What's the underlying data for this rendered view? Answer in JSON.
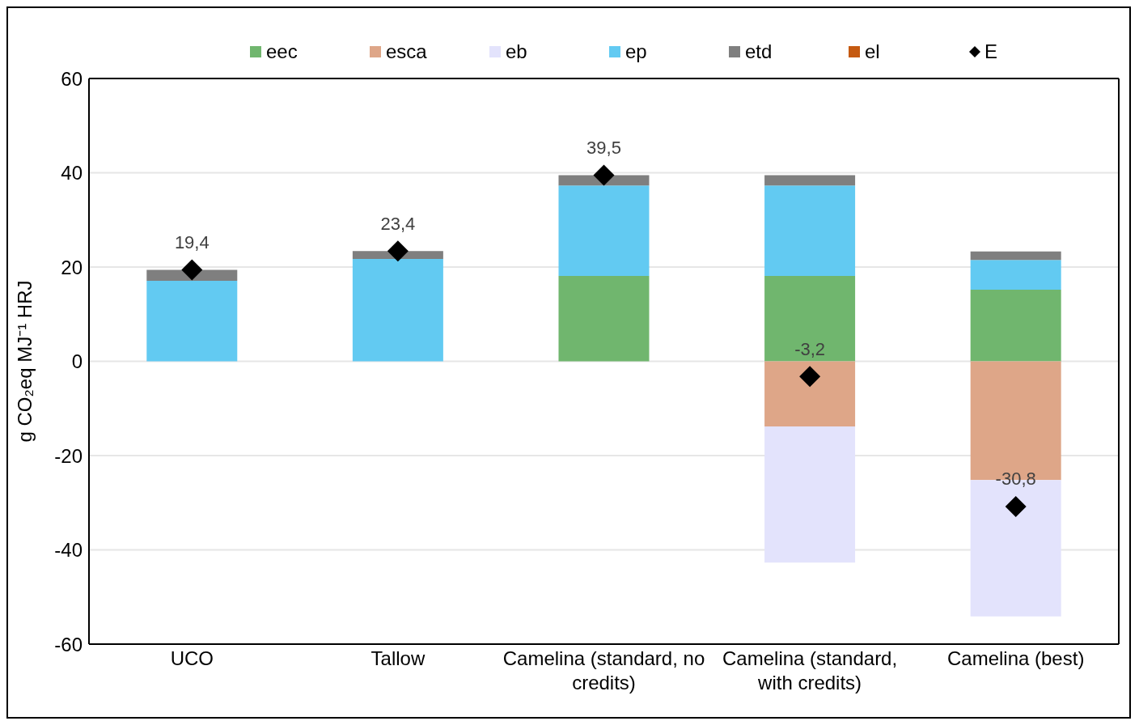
{
  "chart_data": {
    "type": "bar",
    "stacked": true,
    "ylabel": "g CO₂eq MJ⁻¹ HRJ",
    "categories": [
      "UCO",
      "Tallow",
      "Camelina (standard, no credits)",
      "Camelina (standard, with credits)",
      "Camelina (best)"
    ],
    "series": [
      {
        "name": "eec",
        "color": "#70b66e",
        "values": [
          null,
          null,
          18.1,
          18.1,
          15.2
        ]
      },
      {
        "name": "esca",
        "color": "#dea688",
        "values": [
          null,
          null,
          null,
          -13.8,
          -25.2
        ]
      },
      {
        "name": "eb",
        "color": "#e3e3fc",
        "values": [
          null,
          null,
          null,
          -28.9,
          -28.9
        ]
      },
      {
        "name": "ep",
        "color": "#62caf2",
        "values": [
          17.1,
          21.7,
          19.2,
          19.2,
          6.3
        ]
      },
      {
        "name": "etd",
        "color": "#7f7f7f",
        "values": [
          2.3,
          1.7,
          2.2,
          2.2,
          1.8
        ]
      },
      {
        "name": "el",
        "color": "#c55a11",
        "values": [
          null,
          null,
          null,
          null,
          null
        ]
      },
      {
        "name": "E",
        "type": "scatter",
        "marker": "diamond",
        "color": "#000000",
        "values": [
          19.4,
          23.4,
          39.5,
          -3.2,
          -30.8
        ],
        "value_labels": [
          "19,4",
          "23,4",
          "39,5",
          "-3,2",
          "-30,8"
        ]
      }
    ],
    "ylim": [
      -60,
      60
    ],
    "yticks": [
      -60,
      -40,
      -20,
      0,
      20,
      40,
      60
    ],
    "grid": "y",
    "legend": "top"
  }
}
